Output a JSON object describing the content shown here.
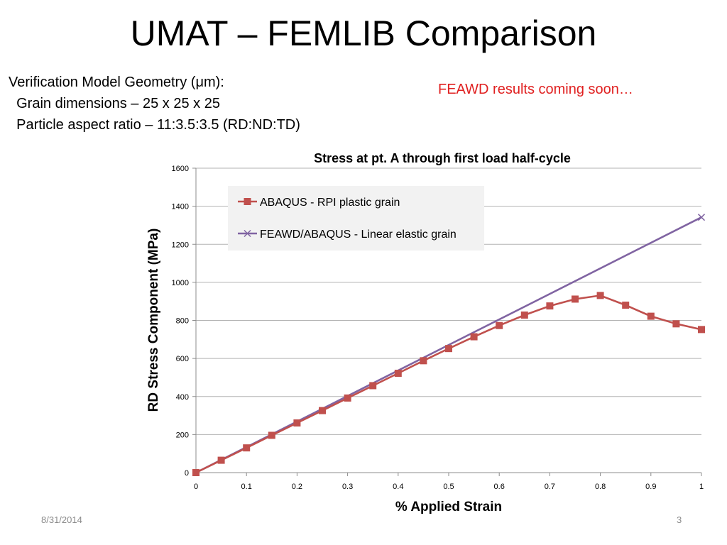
{
  "slide": {
    "title": "UMAT – FEMLIB Comparison",
    "geometry_lines": [
      "Verification Model Geometry (μm):",
      "  Grain dimensions – 25 x 25 x 25",
      "  Particle aspect ratio – 11:3.5:3.5 (RD:ND:TD)"
    ],
    "notice": "FEAWD results coming soon…",
    "notice_color": "#e02020",
    "footer_date": "8/31/2014",
    "page_number": "3"
  },
  "chart_data": {
    "type": "line",
    "title": "Stress at pt. A through first load half-cycle",
    "xlabel": "% Applied Strain",
    "ylabel": "RD Stress Component (MPa)",
    "xlim": [
      0,
      1
    ],
    "ylim": [
      0,
      1600
    ],
    "xticks": [
      "0",
      "0.1",
      "0.2",
      "0.3",
      "0.4",
      "0.5",
      "0.6",
      "0.7",
      "0.8",
      "0.9",
      "1"
    ],
    "yticks": [
      "0",
      "200",
      "400",
      "600",
      "800",
      "1000",
      "1200",
      "1400",
      "1600"
    ],
    "grid": "horizontal",
    "legend_position": "top-left",
    "series": [
      {
        "name": "ABAQUS - RPI plastic grain",
        "color": "#c0504d",
        "marker": "square",
        "x": [
          0,
          0.05,
          0.1,
          0.15,
          0.2,
          0.25,
          0.3,
          0.35,
          0.4,
          0.45,
          0.5,
          0.55,
          0.6,
          0.65,
          0.7,
          0.75,
          0.8,
          0.85,
          0.9,
          0.95,
          1.0
        ],
        "y": [
          0,
          65,
          130,
          196,
          261,
          326,
          392,
          457,
          522,
          588,
          652,
          714,
          773,
          828,
          876,
          912,
          931,
          880,
          822,
          782,
          752
        ]
      },
      {
        "name": "FEAWD/ABAQUS - Linear elastic grain",
        "color": "#8064a2",
        "marker": "x",
        "x": [
          0,
          1.0
        ],
        "y": [
          0,
          1342
        ]
      }
    ]
  }
}
